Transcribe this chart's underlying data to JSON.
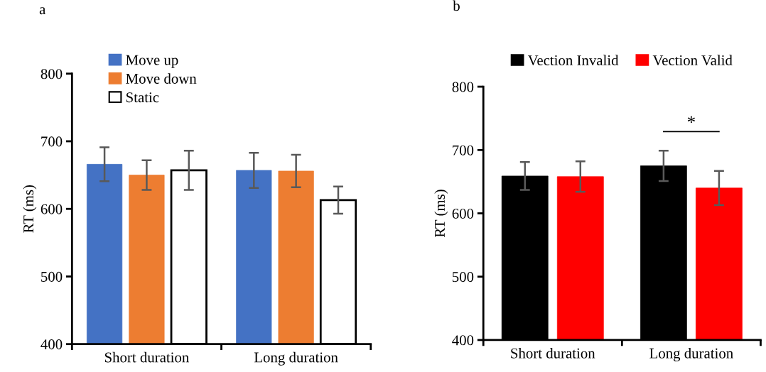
{
  "chart_data": [
    {
      "type": "bar",
      "title": "a",
      "ylabel": "RT (ms)",
      "categories": [
        "Short duration",
        "Long duration"
      ],
      "ylim": [
        400,
        800
      ],
      "yticks": [
        400,
        500,
        600,
        700,
        800
      ],
      "legend": "top left",
      "grid": false,
      "series": [
        {
          "name": "Move up",
          "color": "#4472c4",
          "values": [
            666,
            657
          ],
          "errors": [
            25,
            26
          ]
        },
        {
          "name": "Move down",
          "color": "#ed7d31",
          "values": [
            650,
            656
          ],
          "errors": [
            22,
            24
          ]
        },
        {
          "name": "Static",
          "color": "#ffffff",
          "values": [
            657,
            613
          ],
          "errors": [
            29,
            20
          ]
        }
      ]
    },
    {
      "type": "bar",
      "title": "b",
      "ylabel": "RT (ms)",
      "categories": [
        "Short duration",
        "Long duration"
      ],
      "ylim": [
        400,
        800
      ],
      "yticks": [
        400,
        500,
        600,
        700,
        800
      ],
      "legend": "top",
      "grid": false,
      "annotations": [
        "*"
      ],
      "series": [
        {
          "name": "Vection Invalid",
          "color": "#000000",
          "values": [
            659,
            675
          ],
          "errors": [
            22,
            24
          ]
        },
        {
          "name": "Vection Valid",
          "color": "#ff0000",
          "values": [
            658,
            640
          ],
          "errors": [
            24,
            27
          ]
        }
      ]
    }
  ]
}
